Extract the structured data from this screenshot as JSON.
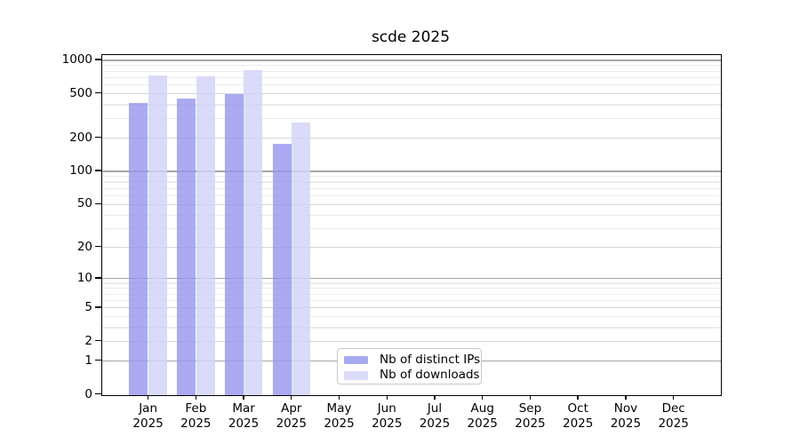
{
  "title": "scde 2025",
  "chart_data": {
    "type": "bar",
    "title": "scde 2025",
    "x_categories": [
      "Jan",
      "Feb",
      "Mar",
      "Apr",
      "May",
      "Jun",
      "Jul",
      "Aug",
      "Sep",
      "Oct",
      "Nov",
      "Dec"
    ],
    "x_year": "2025",
    "series": [
      {
        "name": "Nb of distinct IPs",
        "color": "#9797ef",
        "values": [
          414,
          454,
          502,
          178,
          0,
          0,
          0,
          0,
          0,
          0,
          0,
          0
        ]
      },
      {
        "name": "Nb of downloads",
        "color": "#d3d3f8",
        "values": [
          733,
          721,
          823,
          275,
          0,
          0,
          0,
          0,
          0,
          0,
          0,
          0
        ]
      }
    ],
    "y_scale": "log10(1+x)",
    "ylim": [
      0,
      1120
    ],
    "y_ticks": [
      0,
      1,
      2,
      5,
      10,
      20,
      50,
      100,
      200,
      500,
      1000
    ],
    "y_tick_labels": [
      "0",
      "1",
      "2",
      "5",
      "10",
      "20",
      "50",
      "100",
      "200",
      "500",
      "1000"
    ],
    "grid": "horizontal",
    "legend_position": "lower-center-inside"
  },
  "legend": {
    "items": [
      {
        "label": "Nb of distinct IPs"
      },
      {
        "label": "Nb of downloads"
      }
    ]
  },
  "colors": {
    "bar_distinct_ips": "#9797ef",
    "bar_downloads": "#d3d3f8",
    "grid_major": "#a5a5a5",
    "grid_mid": "#d6d6d6",
    "grid_minor": "#ebebeb",
    "axis": "#000000",
    "legend_border": "#c9c9c9"
  }
}
